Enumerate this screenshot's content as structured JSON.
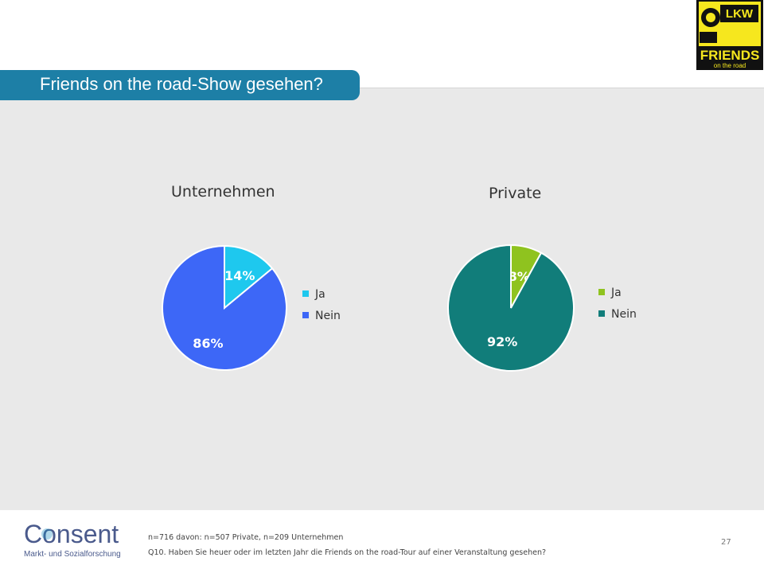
{
  "slide_title": "Friends on the road-Show gesehen?",
  "logo": {
    "icon": "lkw-friends-logo",
    "text_top": "LKW",
    "text_main": "FRIENDS",
    "text_sub": "on the road"
  },
  "chart_data": [
    {
      "type": "pie",
      "title": "Unternehmen",
      "categories": [
        "Ja",
        "Nein"
      ],
      "values": [
        14,
        86
      ],
      "labels": [
        "14%",
        "86%"
      ],
      "colors": [
        "#1ec8ee",
        "#3d67f7"
      ],
      "legend_placement": "right"
    },
    {
      "type": "pie",
      "title": "Private",
      "categories": [
        "Ja",
        "Nein"
      ],
      "values": [
        8,
        92
      ],
      "labels": [
        "8%",
        "92%"
      ],
      "colors": [
        "#8fc31f",
        "#117d7a"
      ],
      "legend_placement": "right"
    }
  ],
  "footer": {
    "brand": "Consent",
    "brand_sub": "Markt- und Sozialforschung",
    "note1": "n=716 davon: n=507 Private, n=209 Unternehmen",
    "note2": "Q10. Haben Sie heuer oder im letzten Jahr die Friends on the road-Tour auf einer Veranstaltung gesehen?",
    "page": "27"
  }
}
